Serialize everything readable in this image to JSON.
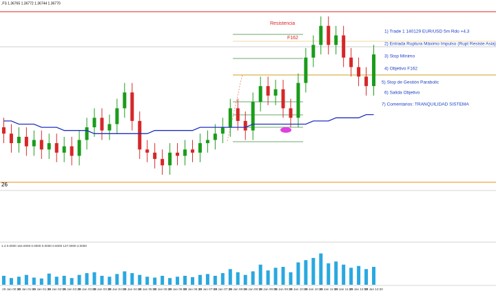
{
  "header": ",FS 1.36765 1.36772 1.36744 1.36770",
  "annotations": {
    "resistance": "Resistencia",
    "fib": "F162",
    "corner": "26",
    "indicator_label": "1.4 0.0000 164.0000 0.0000 0.0000 0.0000 127.0000 2.0000",
    "notes": [
      "1) Trade 1 140129 EUR/USD 5m Rdo +4,3",
      "2) Entrada Ruptura Máximo Impulso (Rupt Resiste Asia)",
      "3) Stop Mínimo",
      "4) Objetivo F162",
      "5) Stop de Gestión Parabolic",
      "6) Salida Objetivo",
      "7) Comentarios: TRANQUILIDAD SISTEMA"
    ]
  },
  "chart_data": {
    "type": "candlestick",
    "categories": [
      null,
      "29 Jan 00:30",
      null,
      "29 Jan 01:00",
      null,
      "29 Jan 01:30",
      null,
      "29 Jan 02:00",
      null,
      "29 Jan 02:30",
      null,
      "29 Jan 03:00",
      null,
      "29 Jan 03:30",
      null,
      "29 Jan 04:00",
      null,
      "29 Jan 04:30",
      null,
      "29 Jan 05:00",
      null,
      "29 Jan 05:30",
      null,
      "29 Jan 06:00",
      null,
      "29 Jan 06:30",
      null,
      "29 Jan 07:00",
      null,
      "29 Jan 07:30",
      null,
      "29 Jan 08:00",
      null,
      "29 Jan 08:30",
      null,
      "29 Jan 09:00",
      null,
      "29 Jan 09:30",
      null,
      "29 Jan 10:00",
      null,
      "29 Jan 10:30",
      null,
      "29 Jan 11:00",
      null,
      "29 Jan 11:30",
      null,
      "29 Jan 12:00",
      null,
      "29 Jan 12:30"
    ],
    "open": [
      1.3656,
      1.3654,
      1.3651,
      1.3653,
      1.365,
      1.3652,
      1.3649,
      1.3651,
      1.3648,
      1.365,
      1.3647,
      1.3652,
      1.3656,
      1.3659,
      1.3655,
      1.3657,
      1.3662,
      1.3667,
      1.3658,
      1.3649,
      1.3648,
      1.3646,
      1.3644,
      1.3648,
      1.3647,
      1.3649,
      1.3648,
      1.3651,
      1.3652,
      1.3654,
      1.3656,
      1.3662,
      1.3658,
      1.3655,
      1.3664,
      1.3669,
      1.3666,
      1.3668,
      1.3662,
      1.3659,
      1.367,
      1.3678,
      1.3682,
      1.3688,
      1.3682,
      1.3685,
      1.3678,
      1.3675,
      1.3672,
      1.3669
    ],
    "high": [
      1.3659,
      1.3657,
      1.3656,
      1.3656,
      1.3655,
      1.3655,
      1.3654,
      1.3654,
      1.3653,
      1.3653,
      1.3655,
      1.3659,
      1.3662,
      1.3662,
      1.366,
      1.3665,
      1.367,
      1.367,
      1.3661,
      1.3652,
      1.3651,
      1.3649,
      1.3651,
      1.3651,
      1.3652,
      1.3652,
      1.3654,
      1.3655,
      1.3657,
      1.3659,
      1.3665,
      1.3665,
      1.3661,
      1.3667,
      1.3672,
      1.3672,
      1.3671,
      1.3671,
      1.3665,
      1.3673,
      1.3681,
      1.3685,
      1.3691,
      1.3691,
      1.3688,
      1.3688,
      1.3681,
      1.3678,
      1.3675,
      1.3682
    ],
    "low": [
      1.3651,
      1.3648,
      1.3648,
      1.3647,
      1.3647,
      1.3646,
      1.3646,
      1.3645,
      1.3645,
      1.3644,
      1.3644,
      1.3649,
      1.3653,
      1.3652,
      1.3652,
      1.3654,
      1.3659,
      1.3655,
      1.3646,
      1.3645,
      1.3643,
      1.3641,
      1.3641,
      1.3644,
      1.3644,
      1.3645,
      1.3645,
      1.3648,
      1.3649,
      1.3651,
      1.3653,
      1.3655,
      1.3652,
      1.3652,
      1.3661,
      1.3663,
      1.3663,
      1.3659,
      1.3656,
      1.3656,
      1.3667,
      1.3675,
      1.3679,
      1.3679,
      1.3679,
      1.3675,
      1.3672,
      1.3669,
      1.3666,
      1.3666
    ],
    "close": [
      1.3654,
      1.3651,
      1.3653,
      1.365,
      1.3652,
      1.3649,
      1.3651,
      1.3648,
      1.365,
      1.3647,
      1.3652,
      1.3656,
      1.3659,
      1.3655,
      1.3657,
      1.3662,
      1.3667,
      1.3658,
      1.3649,
      1.3648,
      1.3646,
      1.3644,
      1.3648,
      1.3647,
      1.3649,
      1.3648,
      1.3651,
      1.3652,
      1.3654,
      1.3656,
      1.3662,
      1.3658,
      1.3655,
      1.3664,
      1.3669,
      1.3666,
      1.3668,
      1.3662,
      1.3659,
      1.367,
      1.3678,
      1.3682,
      1.3688,
      1.3682,
      1.3685,
      1.3678,
      1.3675,
      1.3672,
      1.3669,
      1.3679
    ],
    "ylim": [
      1.3638,
      1.3694
    ],
    "colors": {
      "up": "#1a9c1a",
      "down": "#d62728"
    },
    "ma": {
      "color": "#1f2fbf",
      "values": [
        1.3658,
        1.3658,
        1.3657,
        1.3657,
        1.3657,
        1.3656,
        1.3656,
        1.3656,
        1.3655,
        1.3655,
        1.3655,
        1.3655,
        1.3654,
        1.3654,
        1.3654,
        1.3654,
        1.3654,
        1.3654,
        1.3654,
        1.3654,
        1.3655,
        1.3655,
        1.3655,
        1.3655,
        1.3655,
        1.3655,
        1.3656,
        1.3656,
        1.3656,
        1.3656,
        1.3656,
        1.3656,
        1.3656,
        1.3657,
        1.3657,
        1.3657,
        1.3657,
        1.3657,
        1.3657,
        1.3657,
        1.3657,
        1.3658,
        1.3658,
        1.3658,
        1.3659,
        1.3659,
        1.3659,
        1.3659,
        1.366,
        1.366
      ]
    },
    "volume": {
      "color": "#29a8e0",
      "ylim": [
        0,
        80
      ],
      "values": [
        20,
        15,
        18,
        22,
        16,
        14,
        25,
        18,
        20,
        15,
        22,
        26,
        28,
        20,
        18,
        24,
        30,
        26,
        22,
        18,
        16,
        20,
        15,
        18,
        20,
        17,
        22,
        24,
        20,
        26,
        35,
        28,
        22,
        30,
        45,
        32,
        38,
        40,
        28,
        50,
        55,
        60,
        70,
        48,
        52,
        45,
        38,
        42,
        35,
        40
      ]
    }
  }
}
